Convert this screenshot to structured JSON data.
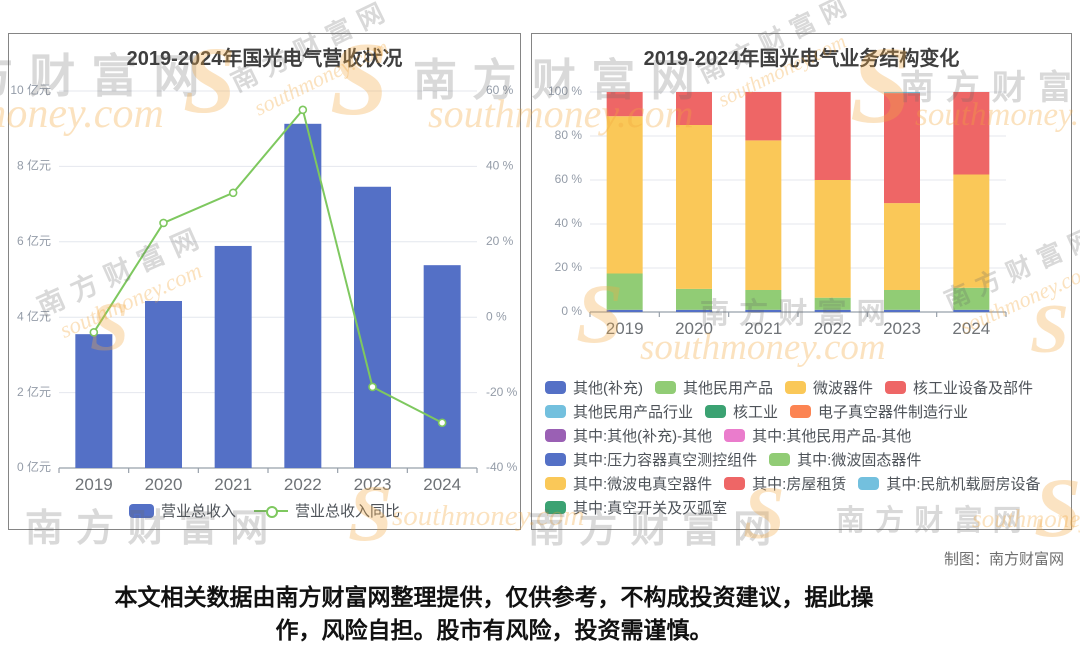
{
  "page": {
    "credit": "制图：南方财富网",
    "disclaimer_line1": "本文相关数据由南方财富网整理提供，仅供参考，不构成投资建议，据此操",
    "disclaimer_line2": "作，风险自担。股市有风险，投资需谨慎。",
    "watermark": {
      "cn": "南方财富网",
      "en": "southmoney.com",
      "s_glyph": "S"
    }
  },
  "chart_data": [
    {
      "type": "bar+line",
      "title": "2019-2024年国光电气营收状况",
      "categories": [
        "2019",
        "2020",
        "2021",
        "2022",
        "2023",
        "2024"
      ],
      "series": [
        {
          "name": "营业总收入",
          "type": "bar",
          "unit": "亿元",
          "values": [
            3.55,
            4.43,
            5.89,
            9.13,
            7.46,
            5.38
          ],
          "color": "#5470c6"
        },
        {
          "name": "营业总收入同比",
          "type": "line",
          "unit": "%",
          "values": [
            -4,
            25,
            33,
            55,
            -18.5,
            -28
          ],
          "color": "#7ec85f"
        }
      ],
      "left_axis": {
        "min": 0,
        "max": 10,
        "ticks": [
          "0 亿元",
          "2 亿元",
          "4 亿元",
          "6 亿元",
          "8 亿元",
          "10 亿元"
        ]
      },
      "right_axis": {
        "min": -40,
        "max": 60,
        "ticks": [
          "-40 %",
          "-20 %",
          "0 %",
          "20 %",
          "40 %",
          "60 %"
        ]
      },
      "grid": true,
      "legend_position": "bottom"
    },
    {
      "type": "stacked-bar",
      "title": "2019-2024年国光电气业务结构变化",
      "categories": [
        "2019",
        "2020",
        "2021",
        "2022",
        "2023",
        "2024"
      ],
      "unit": "%",
      "series": [
        {
          "name": "其他(补充)",
          "values": [
            1,
            1,
            1,
            1,
            1,
            1
          ],
          "color": "#5470c6"
        },
        {
          "name": "其他民用产品",
          "values": [
            16.5,
            9.5,
            9,
            5.5,
            9,
            10
          ],
          "color": "#91cc75"
        },
        {
          "name": "微波器件",
          "values": [
            71.5,
            74.5,
            68,
            53.5,
            39.5,
            51.5
          ],
          "color": "#fac858"
        },
        {
          "name": "核工业设备及部件",
          "values": [
            11,
            15,
            22,
            40,
            50,
            37.5
          ],
          "color": "#ee6666"
        },
        {
          "name": "其他民用产品行业",
          "values": [
            0,
            0,
            0,
            0,
            0.5,
            0
          ],
          "color": "#73c0de"
        }
      ],
      "y_axis": {
        "min": 0,
        "max": 100,
        "ticks": [
          "0 %",
          "20 %",
          "40 %",
          "60 %",
          "80 %",
          "100 %"
        ]
      },
      "grid": true,
      "legend_position": "bottom",
      "legend_rows": [
        [
          {
            "label": "其他(补充)",
            "color": "#5470c6"
          },
          {
            "label": "其他民用产品",
            "color": "#91cc75"
          },
          {
            "label": "微波器件",
            "color": "#fac858"
          },
          {
            "label": "核工业设备及部件",
            "color": "#ee6666"
          }
        ],
        [
          {
            "label": "其他民用产品行业",
            "color": "#73c0de"
          },
          {
            "label": "核工业",
            "color": "#3ba272"
          },
          {
            "label": "电子真空器件制造行业",
            "color": "#fc8452"
          }
        ],
        [
          {
            "label": "其中:其他(补充)-其他",
            "color": "#9a60b4"
          },
          {
            "label": "其中:其他民用产品-其他",
            "color": "#ea7ccc"
          }
        ],
        [
          {
            "label": "其中:压力容器真空测控组件",
            "color": "#5470c6"
          },
          {
            "label": "其中:微波固态器件",
            "color": "#91cc75"
          }
        ],
        [
          {
            "label": "其中:微波电真空器件",
            "color": "#fac858"
          },
          {
            "label": "其中:房屋租赁",
            "color": "#ee6666"
          },
          {
            "label": "其中:民航机载厨房设备",
            "color": "#73c0de"
          }
        ],
        [
          {
            "label": "其中:真空开关及灭弧室",
            "color": "#3ba272"
          }
        ]
      ]
    }
  ],
  "style": {
    "grid_color": "#e4e7ee",
    "axis_color": "#98a0aa",
    "tick_label_color": "#949ca8",
    "category_label_color": "#6f7377"
  }
}
